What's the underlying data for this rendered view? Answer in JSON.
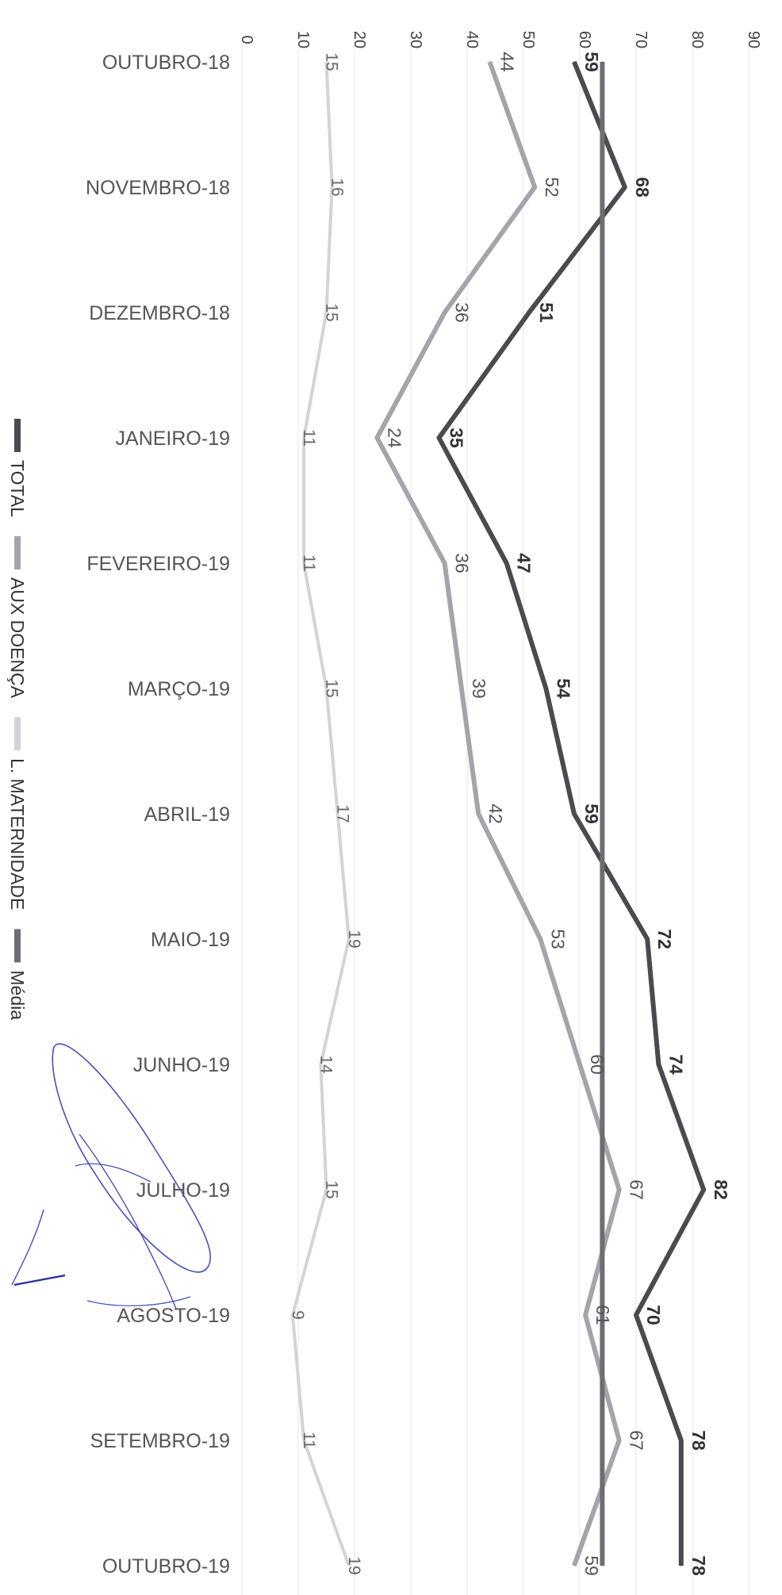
{
  "chart_data": {
    "type": "line",
    "orientation": "rotated-90-clockwise",
    "categories": [
      "OUTUBRO-18",
      "NOVEMBRO-18",
      "DEZEMBRO-18",
      "JANEIRO-19",
      "FEVEREIRO-19",
      "MARÇO-19",
      "ABRIL-19",
      "MAIO-19",
      "JUNHO-19",
      "JULHO-19",
      "AGOSTO-19",
      "SETEMBRO-19",
      "OUTUBRO-19"
    ],
    "y_ticks": [
      "0",
      "10",
      "20",
      "30",
      "40",
      "50",
      "60",
      "70",
      "80",
      "90"
    ],
    "ylim": [
      0,
      90
    ],
    "grid": true,
    "legend_position": "bottom",
    "series": [
      {
        "name": "TOTAL",
        "color": "#4a4a50",
        "labeled": true,
        "label_style": "bold",
        "values": [
          59,
          68,
          51,
          35,
          47,
          54,
          59,
          72,
          74,
          82,
          70,
          78,
          78
        ]
      },
      {
        "name": "AUX DOENÇA",
        "color": "#a4a4ac",
        "labeled": true,
        "label_style": "normal",
        "values": [
          44,
          52,
          36,
          24,
          36,
          39,
          42,
          53,
          60,
          67,
          61,
          67,
          59
        ]
      },
      {
        "name": "L. MATERNIDADE",
        "color": "#d4d4d8",
        "labeled": true,
        "label_style": "light",
        "values": [
          15,
          16,
          15,
          11,
          11,
          15,
          17,
          19,
          14,
          15,
          9,
          11,
          19
        ]
      },
      {
        "name": "Média",
        "color": "#6d6d75",
        "labeled": false,
        "values": [
          64,
          64,
          64,
          64,
          64,
          64,
          64,
          64,
          64,
          64,
          64,
          64,
          64
        ]
      }
    ]
  },
  "annotation": {
    "type": "handwritten-signature"
  }
}
